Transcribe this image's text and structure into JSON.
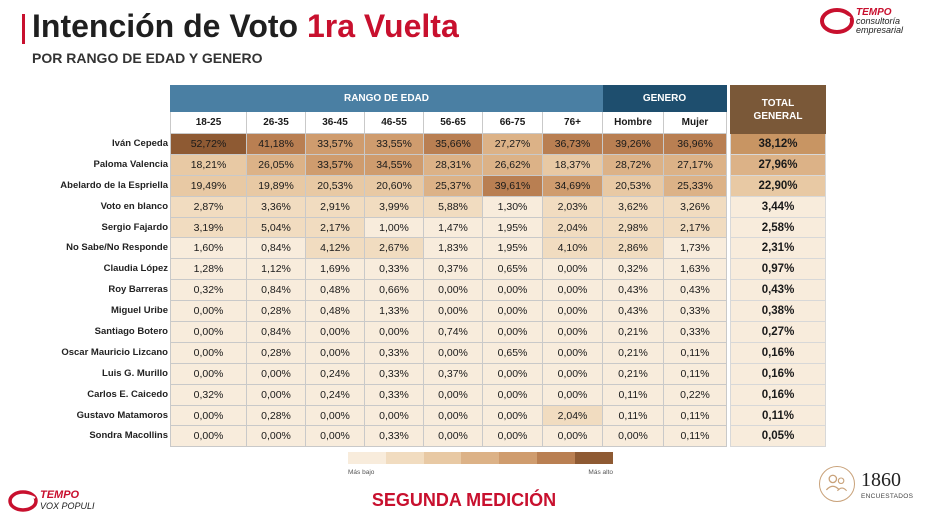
{
  "header": {
    "title_main": "Intención de Voto",
    "title_accent": "1ra Vuelta",
    "subtitle": "POR RANGO DE EDAD Y GENERO"
  },
  "brand": {
    "top_name": "TEMPO",
    "top_tagline_1": "consultoría",
    "top_tagline_2": "empresarial",
    "bottom_name": "TEMPO",
    "bottom_tagline": "VOX POPULI",
    "accent_color": "#c8102e"
  },
  "table": {
    "group_headers": {
      "age": "RANGO DE EDAD",
      "gender": "GENERO",
      "total_1": "TOTAL",
      "total_2": "GENERAL"
    },
    "age_columns": [
      "18-25",
      "26-35",
      "36-45",
      "46-55",
      "56-65",
      "66-75",
      "76+"
    ],
    "gender_columns": [
      "Hombre",
      "Mujer"
    ],
    "rows": [
      {
        "name": "Iván Cepeda",
        "ages": [
          "52,72%",
          "41,18%",
          "33,57%",
          "33,55%",
          "35,66%",
          "27,27%",
          "36,73%"
        ],
        "genders": [
          "39,26%",
          "36,96%"
        ],
        "total": "38,12%"
      },
      {
        "name": "Paloma Valencia",
        "ages": [
          "18,21%",
          "26,05%",
          "33,57%",
          "34,55%",
          "28,31%",
          "26,62%",
          "18,37%"
        ],
        "genders": [
          "28,72%",
          "27,17%"
        ],
        "total": "27,96%"
      },
      {
        "name": "Abelardo de la Espriella",
        "ages": [
          "19,49%",
          "19,89%",
          "20,53%",
          "20,60%",
          "25,37%",
          "39,61%",
          "34,69%"
        ],
        "genders": [
          "20,53%",
          "25,33%"
        ],
        "total": "22,90%"
      },
      {
        "name": "Voto en blanco",
        "ages": [
          "2,87%",
          "3,36%",
          "2,91%",
          "3,99%",
          "5,88%",
          "1,30%",
          "2,03%"
        ],
        "genders": [
          "3,62%",
          "3,26%"
        ],
        "total": "3,44%"
      },
      {
        "name": "Sergio Fajardo",
        "ages": [
          "3,19%",
          "5,04%",
          "2,17%",
          "1,00%",
          "1,47%",
          "1,95%",
          "2,04%"
        ],
        "genders": [
          "2,98%",
          "2,17%"
        ],
        "total": "2,58%"
      },
      {
        "name": "No Sabe/No Responde",
        "ages": [
          "1,60%",
          "0,84%",
          "4,12%",
          "2,67%",
          "1,83%",
          "1,95%",
          "4,10%"
        ],
        "genders": [
          "2,86%",
          "1,73%"
        ],
        "total": "2,31%"
      },
      {
        "name": "Claudia López",
        "ages": [
          "1,28%",
          "1,12%",
          "1,69%",
          "0,33%",
          "0,37%",
          "0,65%",
          "0,00%"
        ],
        "genders": [
          "0,32%",
          "1,63%"
        ],
        "total": "0,97%"
      },
      {
        "name": "Roy Barreras",
        "ages": [
          "0,32%",
          "0,84%",
          "0,48%",
          "0,66%",
          "0,00%",
          "0,00%",
          "0,00%"
        ],
        "genders": [
          "0,43%",
          "0,43%"
        ],
        "total": "0,43%"
      },
      {
        "name": "Miguel Uribe",
        "ages": [
          "0,00%",
          "0,28%",
          "0,48%",
          "1,33%",
          "0,00%",
          "0,00%",
          "0,00%"
        ],
        "genders": [
          "0,43%",
          "0,33%"
        ],
        "total": "0,38%"
      },
      {
        "name": "Santiago Botero",
        "ages": [
          "0,00%",
          "0,84%",
          "0,00%",
          "0,00%",
          "0,74%",
          "0,00%",
          "0,00%"
        ],
        "genders": [
          "0,21%",
          "0,33%"
        ],
        "total": "0,27%"
      },
      {
        "name": "Oscar Mauricio Lizcano",
        "ages": [
          "0,00%",
          "0,28%",
          "0,00%",
          "0,33%",
          "0,00%",
          "0,65%",
          "0,00%"
        ],
        "genders": [
          "0,21%",
          "0,11%"
        ],
        "total": "0,16%"
      },
      {
        "name": "Luis  G. Murillo",
        "ages": [
          "0,00%",
          "0,00%",
          "0,24%",
          "0,33%",
          "0,37%",
          "0,00%",
          "0,00%"
        ],
        "genders": [
          "0,21%",
          "0,11%"
        ],
        "total": "0,16%"
      },
      {
        "name": "Carlos E.  Caicedo",
        "ages": [
          "0,32%",
          "0,00%",
          "0,24%",
          "0,33%",
          "0,00%",
          "0,00%",
          "0,00%"
        ],
        "genders": [
          "0,11%",
          "0,22%"
        ],
        "total": "0,16%"
      },
      {
        "name": "Gustavo Matamoros",
        "ages": [
          "0,00%",
          "0,28%",
          "0,00%",
          "0,00%",
          "0,00%",
          "0,00%",
          "2,04%"
        ],
        "genders": [
          "0,11%",
          "0,11%"
        ],
        "total": "0,11%"
      },
      {
        "name": "Sondra Macollins",
        "ages": [
          "0,00%",
          "0,00%",
          "0,00%",
          "0,33%",
          "0,00%",
          "0,00%",
          "0,00%"
        ],
        "genders": [
          "0,00%",
          "0,11%"
        ],
        "total": "0,05%"
      }
    ]
  },
  "legend": {
    "low_label": "Más bajo",
    "high_label": "Más alto",
    "colors": [
      "#f8ecdc",
      "#f1dcc0",
      "#e8c9a4",
      "#dcb287",
      "#cf9c6e",
      "#b97f52",
      "#8e5a33"
    ]
  },
  "footer": {
    "title": "SEGUNDA MEDICIÓN",
    "sample_size": "1860",
    "sample_label": "ENCUESTADOS"
  }
}
